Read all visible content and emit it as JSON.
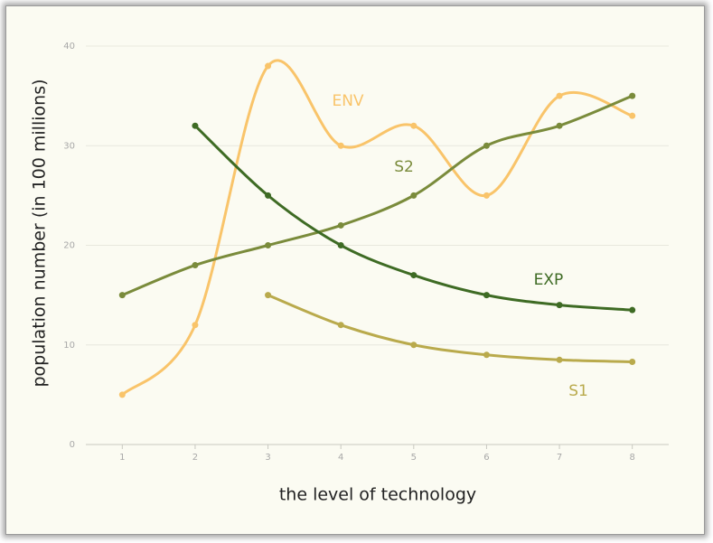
{
  "chart_data": {
    "type": "line",
    "x_label": "the level of technology",
    "y_label": "population number (in 100 millions)",
    "x": [
      1,
      2,
      3,
      4,
      5,
      6,
      7,
      8
    ],
    "series": [
      {
        "name": "ENV",
        "color": "#f9c46a",
        "values": [
          5,
          12,
          38,
          30,
          32,
          25,
          35,
          33
        ]
      },
      {
        "name": "S2",
        "color": "#7a8b3b",
        "values": [
          15,
          18,
          20,
          22,
          25,
          30,
          32,
          35
        ]
      },
      {
        "name": "EXP",
        "color": "#3e6b24",
        "values": [
          null,
          32,
          25,
          20,
          17,
          15,
          14,
          13.5
        ]
      },
      {
        "name": "S1",
        "color": "#b9aa4c",
        "values": [
          null,
          null,
          15,
          12,
          10,
          9,
          8.5,
          8.3
        ]
      }
    ],
    "xlim": [
      0.5,
      8.5
    ],
    "xticks": [
      1,
      2,
      3,
      4,
      5,
      6,
      7,
      8
    ],
    "ylim": [
      0,
      40
    ],
    "yticks": [
      0,
      10,
      20,
      30,
      40
    ],
    "grid": true
  }
}
